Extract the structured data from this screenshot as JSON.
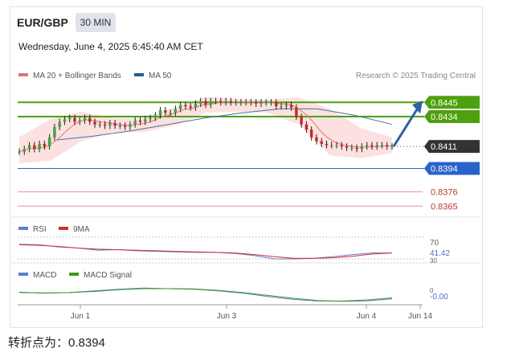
{
  "header": {
    "symbol": "EUR/GBP",
    "timeframe": "30 MIN",
    "datetime": "Wednesday, June 4, 2025 6:45:40 AM CET",
    "credit": "Research © 2025 Trading Central"
  },
  "legend": [
    {
      "label": "MA 20 + Bollinger Bands",
      "color": "#e57373"
    },
    {
      "label": "MA 50",
      "color": "#2b5a9b"
    }
  ],
  "indicator_legends": {
    "rsi": [
      {
        "label": "RSI",
        "color": "#5b7fd1"
      },
      {
        "label": "9MA",
        "color": "#d32f2f"
      }
    ],
    "macd": [
      {
        "label": "MACD",
        "color": "#5b7fd1"
      },
      {
        "label": "MACD Signal",
        "color": "#3c9a1f"
      }
    ]
  },
  "footer": "转折点为：0.8394",
  "colors": {
    "resistance": "#4ea00e",
    "pivot": "#2b62c9",
    "support": "#e8a0a0",
    "current": "#333333",
    "support_text": "#c0392b"
  },
  "chart_data": [
    {
      "type": "candlestick",
      "title": "EUR/GBP",
      "price_levels": [
        {
          "value": 0.8445,
          "label": "0.8445",
          "kind": "resistance"
        },
        {
          "value": 0.8434,
          "label": "0.8434",
          "kind": "resistance"
        },
        {
          "value": 0.8411,
          "label": "0.8411",
          "kind": "current"
        },
        {
          "value": 0.8394,
          "label": "0.8394",
          "kind": "pivot"
        },
        {
          "value": 0.8376,
          "label": "0.8376",
          "kind": "support"
        },
        {
          "value": 0.8365,
          "label": "0.8365",
          "kind": "support"
        }
      ],
      "ylim": [
        0.8359,
        0.8452
      ],
      "x_ticks": [
        "Jun 1",
        "Jun 3",
        "Jun 4",
        "Jun 14"
      ],
      "close": [
        0.8407,
        0.8409,
        0.8412,
        0.8409,
        0.8413,
        0.8411,
        0.8418,
        0.8426,
        0.843,
        0.8432,
        0.8433,
        0.843,
        0.8431,
        0.8433,
        0.843,
        0.8428,
        0.8428,
        0.8427,
        0.8429,
        0.8427,
        0.8427,
        0.8426,
        0.8428,
        0.8431,
        0.843,
        0.8432,
        0.8433,
        0.8435,
        0.8439,
        0.8437,
        0.8437,
        0.844,
        0.8443,
        0.8442,
        0.8441,
        0.8444,
        0.8446,
        0.8443,
        0.8446,
        0.8446,
        0.8445,
        0.8446,
        0.8445,
        0.8445,
        0.8445,
        0.8445,
        0.8445,
        0.8444,
        0.8445,
        0.8445,
        0.8445,
        0.8442,
        0.8442,
        0.8443,
        0.8441,
        0.8434,
        0.8428,
        0.8424,
        0.8418,
        0.8415,
        0.8413,
        0.8412,
        0.8412,
        0.8412,
        0.8411,
        0.841,
        0.841,
        0.8409,
        0.8411,
        0.8412,
        0.8411,
        0.8412,
        0.8412,
        0.8411,
        0.8411
      ],
      "ma50": [
        0.8416,
        0.8419,
        0.8423,
        0.8428,
        0.8433,
        0.8437,
        0.844,
        0.844,
        0.8435,
        0.8428
      ],
      "bb_upper": [
        0.8418,
        0.8432,
        0.8438,
        0.8433,
        0.8433,
        0.8441,
        0.8449,
        0.8448,
        0.8447,
        0.8449,
        0.844,
        0.8425,
        0.8418
      ],
      "bb_lower": [
        0.8398,
        0.84,
        0.8415,
        0.8422,
        0.8422,
        0.8427,
        0.8437,
        0.8438,
        0.8437,
        0.8428,
        0.8404,
        0.8402,
        0.8406
      ],
      "arrow_target": 0.8445
    },
    {
      "type": "line",
      "title": "RSI",
      "ticks": [
        "70",
        "41.42",
        "30"
      ],
      "series": [
        {
          "name": "RSI",
          "values": [
            57,
            56,
            52,
            50,
            46,
            47,
            45,
            44,
            43,
            42,
            42,
            40,
            36,
            30,
            30,
            31,
            34,
            38,
            41,
            41
          ]
        },
        {
          "name": "9MA",
          "values": [
            56,
            55,
            53,
            50,
            48,
            47,
            46,
            45,
            44,
            43,
            42,
            41,
            38,
            34,
            31,
            31,
            32,
            35,
            39,
            41
          ]
        }
      ]
    },
    {
      "type": "line",
      "title": "MACD",
      "ticks": [
        "0",
        "-0.00"
      ],
      "series": [
        {
          "name": "MACD",
          "values": [
            0.2,
            0.1,
            0.15,
            0.3,
            0.45,
            0.55,
            0.5,
            0.45,
            0.3,
            0.1,
            -0.2,
            -0.45,
            -0.6,
            -0.6,
            -0.5,
            -0.3
          ]
        },
        {
          "name": "MACD Signal",
          "values": [
            0.15,
            0.12,
            0.15,
            0.25,
            0.4,
            0.5,
            0.5,
            0.48,
            0.35,
            0.15,
            -0.1,
            -0.35,
            -0.55,
            -0.62,
            -0.58,
            -0.4
          ]
        }
      ]
    }
  ]
}
